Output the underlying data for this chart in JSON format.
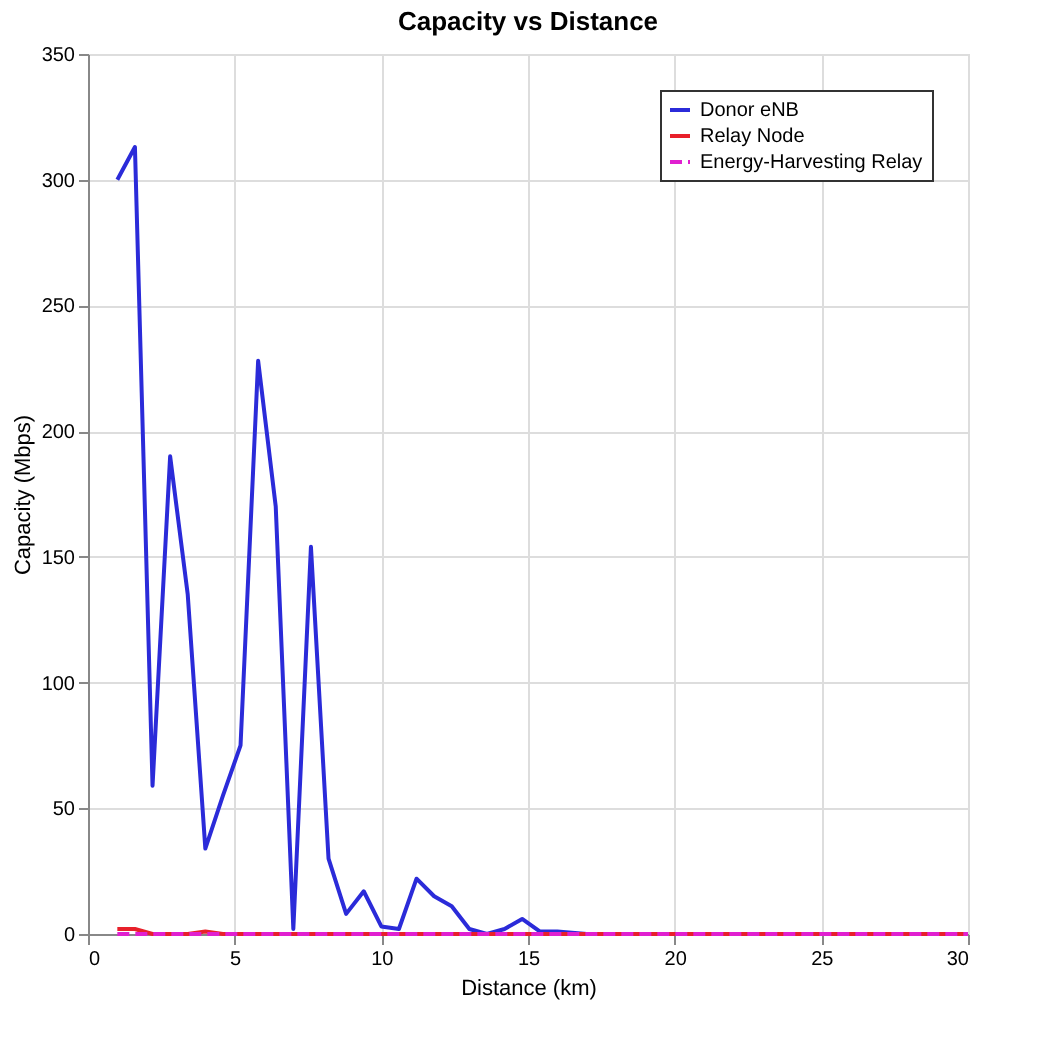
{
  "chart_data": {
    "type": "line",
    "title": "Capacity vs Distance",
    "xlabel": "Distance (km)",
    "ylabel": "Capacity (Mbps)",
    "xlim": [
      0,
      30
    ],
    "xticks": [
      0,
      5,
      10,
      15,
      20,
      25,
      30
    ],
    "ylim": [
      0,
      350
    ],
    "yticks": [
      0,
      50,
      100,
      150,
      200,
      250,
      300,
      350
    ],
    "grid": true,
    "legend": "top right",
    "series": [
      {
        "name": "Donor eNB",
        "color": "#2b2bd9",
        "line_style": "solid",
        "x": [
          1,
          1.6,
          2.2,
          2.8,
          3.4,
          4,
          4.6,
          5.2,
          5.8,
          6.4,
          7,
          7.6,
          8.2,
          8.8,
          9.4,
          10,
          10.6,
          11.2,
          11.8,
          12.4,
          13,
          13.6,
          14.2,
          14.8,
          15.4,
          16,
          17,
          30
        ],
        "values": [
          300,
          313,
          59,
          190,
          135,
          34,
          55,
          75,
          228,
          170,
          2,
          154,
          30,
          8,
          17,
          3,
          2,
          22,
          15,
          11,
          2,
          0,
          2,
          6,
          1,
          1,
          0,
          0
        ]
      },
      {
        "name": "Relay Node",
        "color": "#e8202a",
        "line_style": "solid",
        "x": [
          1,
          1.6,
          2.2,
          3.4,
          4,
          4.6,
          5.2,
          6,
          30
        ],
        "values": [
          2,
          2,
          0,
          0,
          1,
          0,
          0,
          0,
          0
        ]
      },
      {
        "name": "Energy-Harvesting Relay",
        "color": "#e020d0",
        "line_style": "dashed",
        "x": [
          1,
          30
        ],
        "values": [
          0,
          0
        ]
      }
    ]
  }
}
